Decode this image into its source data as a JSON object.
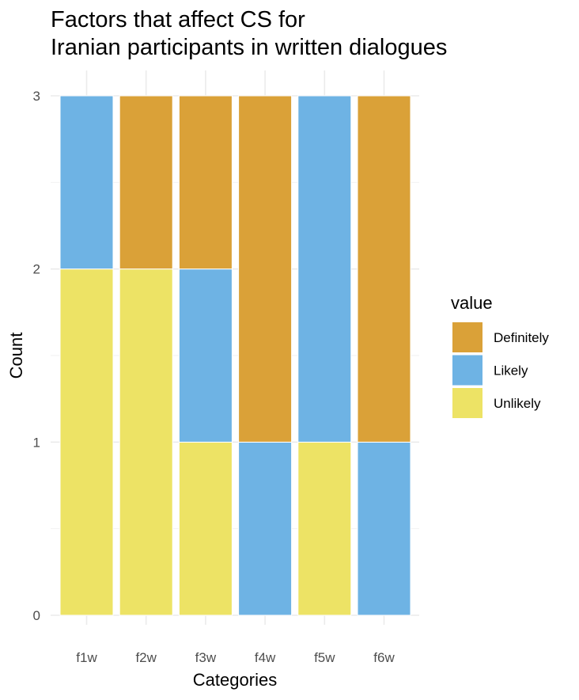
{
  "chart_data": {
    "type": "bar",
    "stacked": true,
    "title": [
      "Factors that affect CS for",
      "Iranian participants in written dialogues"
    ],
    "xlabel": "Categories",
    "ylabel": "Count",
    "categories": [
      "f1w",
      "f2w",
      "f3w",
      "f4w",
      "f5w",
      "f6w"
    ],
    "ylim": [
      0,
      3
    ],
    "yticks": [
      0,
      1,
      2,
      3
    ],
    "grid": true,
    "legend": {
      "title": "value",
      "position": "right"
    },
    "series": [
      {
        "name": "Unlikely",
        "color": "#EDE365",
        "values": [
          2,
          2,
          1,
          0,
          1,
          0
        ]
      },
      {
        "name": "Likely",
        "color": "#6EB3E4",
        "values": [
          1,
          0,
          1,
          1,
          2,
          1
        ]
      },
      {
        "name": "Definitely",
        "color": "#DAA138",
        "values": [
          0,
          1,
          1,
          2,
          0,
          2
        ]
      }
    ],
    "legend_order": [
      "Definitely",
      "Likely",
      "Unlikely"
    ]
  }
}
